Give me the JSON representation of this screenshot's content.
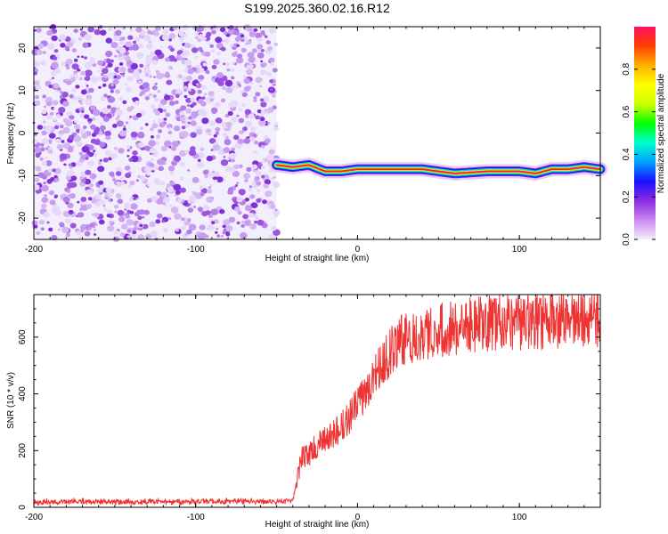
{
  "chart_data": [
    {
      "type": "heatmap",
      "title": "S199.2025.360.02.16.R12",
      "xlabel": "Height of straight line (km)",
      "ylabel": "Frequency (Hz)",
      "xlim": [
        -200,
        150
      ],
      "ylim": [
        -25,
        25
      ],
      "x_ticks": [
        -200,
        -100,
        0,
        100
      ],
      "x_tick_labels": [
        "-200",
        "-100",
        "0",
        "100"
      ],
      "y_ticks": [
        20,
        10,
        0,
        -10,
        -20
      ],
      "y_tick_labels": [
        "20",
        "10",
        "0",
        "-10",
        "-20"
      ],
      "noise_region_x": [
        -200,
        -50
      ],
      "carrier_track": {
        "x": [
          -50,
          -40,
          -30,
          -20,
          -10,
          0,
          20,
          40,
          60,
          80,
          100,
          110,
          120,
          130,
          140,
          150
        ],
        "frequency": [
          -7.5,
          -8.0,
          -7.5,
          -9.0,
          -9.0,
          -8.5,
          -8.5,
          -8.5,
          -9.5,
          -9.0,
          -9.0,
          -9.5,
          -8.5,
          -8.5,
          -8.0,
          -8.5
        ]
      },
      "colorbar": {
        "label": "Normalized spectral amplitude",
        "range": [
          0,
          1
        ],
        "ticks": [
          0.0,
          0.2,
          0.4,
          0.6,
          0.8
        ],
        "tick_labels": [
          "0.0",
          "0.2",
          "0.4",
          "0.6",
          "0.8"
        ],
        "colors": [
          "#f4eefc",
          "#cc88ee",
          "#8a2be2",
          "#1a10ff",
          "#00a0ff",
          "#00ffd0",
          "#00ff00",
          "#ccff00",
          "#ffff00",
          "#ffb000",
          "#ff4000",
          "#ff1060"
        ]
      }
    },
    {
      "type": "line",
      "xlabel": "Height of straight line (km)",
      "ylabel": "SNR (10 * v/v)",
      "xlim": [
        -200,
        150
      ],
      "ylim": [
        0,
        750
      ],
      "x_ticks": [
        -200,
        -100,
        0,
        100
      ],
      "x_tick_labels": [
        "-200",
        "-100",
        "0",
        "100"
      ],
      "y_ticks": [
        0,
        200,
        400,
        600
      ],
      "y_tick_labels": [
        "0",
        "200",
        "400",
        "600"
      ],
      "color": "#ee3333",
      "series": [
        {
          "x": [
            -200,
            -175,
            -150,
            -125,
            -100,
            -75,
            -50,
            -40,
            -38,
            -35,
            -30,
            -25,
            -20,
            -15,
            -10,
            -5,
            0,
            5,
            10,
            15,
            20,
            25,
            30,
            40,
            50,
            60,
            70,
            80,
            90,
            100,
            110,
            120,
            130,
            140,
            150
          ],
          "values": [
            18,
            20,
            19,
            20,
            20,
            21,
            20,
            22,
            75,
            170,
            190,
            215,
            235,
            255,
            280,
            320,
            360,
            410,
            470,
            505,
            545,
            580,
            595,
            615,
            625,
            635,
            640,
            648,
            650,
            652,
            655,
            658,
            660,
            662,
            665
          ]
        }
      ]
    }
  ]
}
